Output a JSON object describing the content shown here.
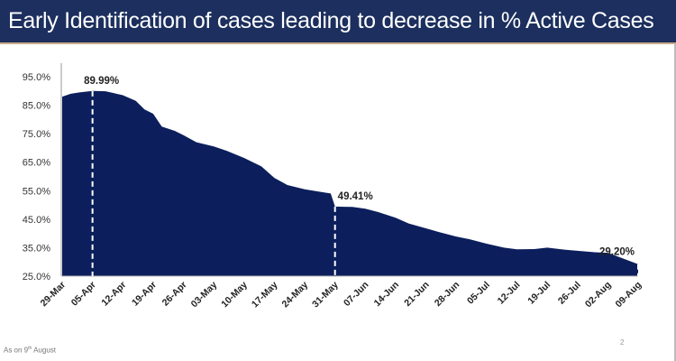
{
  "title": "Early Identification of cases leading to decrease in % Active Cases",
  "footer": {
    "prefix": "As on 9",
    "sup": "th",
    "suffix": " August"
  },
  "page_number": "2",
  "colors": {
    "title_bar": "#1c2f5e",
    "area_fill": "#0c1f5c",
    "marker_line": "#ffffff"
  },
  "chart_data": {
    "type": "area",
    "title": "",
    "xlabel": "",
    "ylabel": "",
    "ylim": [
      25,
      95
    ],
    "y_ticks": [
      "25.0%",
      "35.0%",
      "45.0%",
      "55.0%",
      "65.0%",
      "75.0%",
      "85.0%",
      "95.0%"
    ],
    "x_ticks": [
      "29-Mar",
      "05-Apr",
      "12-Apr",
      "19-Apr",
      "26-Apr",
      "03-May",
      "10-May",
      "17-May",
      "24-May",
      "31-May",
      "07-Jun",
      "14-Jun",
      "21-Jun",
      "28-Jun",
      "05-Jul",
      "12-Jul",
      "19-Jul",
      "26-Jul",
      "02-Aug",
      "09-Aug"
    ],
    "grid": false,
    "legend": "none",
    "series": [
      {
        "points": [
          [
            "29-Mar",
            88
          ],
          [
            "31-Mar",
            89
          ],
          [
            "02-Apr",
            89.5
          ],
          [
            "05-Apr",
            89.99
          ],
          [
            "08-Apr",
            89.9
          ],
          [
            "10-Apr",
            89.2
          ],
          [
            "12-Apr",
            88.5
          ],
          [
            "15-Apr",
            86.5
          ],
          [
            "17-Apr",
            83.5
          ],
          [
            "19-Apr",
            82
          ],
          [
            "21-Apr",
            77.5
          ],
          [
            "24-Apr",
            76
          ],
          [
            "26-Apr",
            74.5
          ],
          [
            "29-Apr",
            72
          ],
          [
            "03-May",
            70.5
          ],
          [
            "06-May",
            69
          ],
          [
            "10-May",
            66.5
          ],
          [
            "14-May",
            63.5
          ],
          [
            "17-May",
            59.5
          ],
          [
            "20-May",
            57
          ],
          [
            "24-May",
            55.5
          ],
          [
            "28-May",
            54.5
          ],
          [
            "30-May",
            54
          ],
          [
            "31-May",
            49.41
          ],
          [
            "04-Jun",
            49.3
          ],
          [
            "07-Jun",
            48.7
          ],
          [
            "10-Jun",
            47.5
          ],
          [
            "14-Jun",
            45.5
          ],
          [
            "17-Jun",
            43.5
          ],
          [
            "21-Jun",
            41.8
          ],
          [
            "24-Jun",
            40.5
          ],
          [
            "28-Jun",
            38.9
          ],
          [
            "01-Jul",
            38
          ],
          [
            "05-Jul",
            36.4
          ],
          [
            "09-Jul",
            35
          ],
          [
            "12-Jul",
            34.4
          ],
          [
            "16-Jul",
            34.5
          ],
          [
            "19-Jul",
            35
          ],
          [
            "23-Jul",
            34.3
          ],
          [
            "26-Jul",
            33.9
          ],
          [
            "30-Jul",
            33.4
          ],
          [
            "02-Aug",
            33.2
          ],
          [
            "05-Aug",
            31.5
          ],
          [
            "09-Aug",
            29.2
          ]
        ]
      }
    ],
    "annotations": [
      {
        "x": "05-Apr",
        "label": "89.99%"
      },
      {
        "x": "31-May",
        "label": "49.41%"
      },
      {
        "x": "09-Aug",
        "label": "29.20%"
      }
    ]
  }
}
